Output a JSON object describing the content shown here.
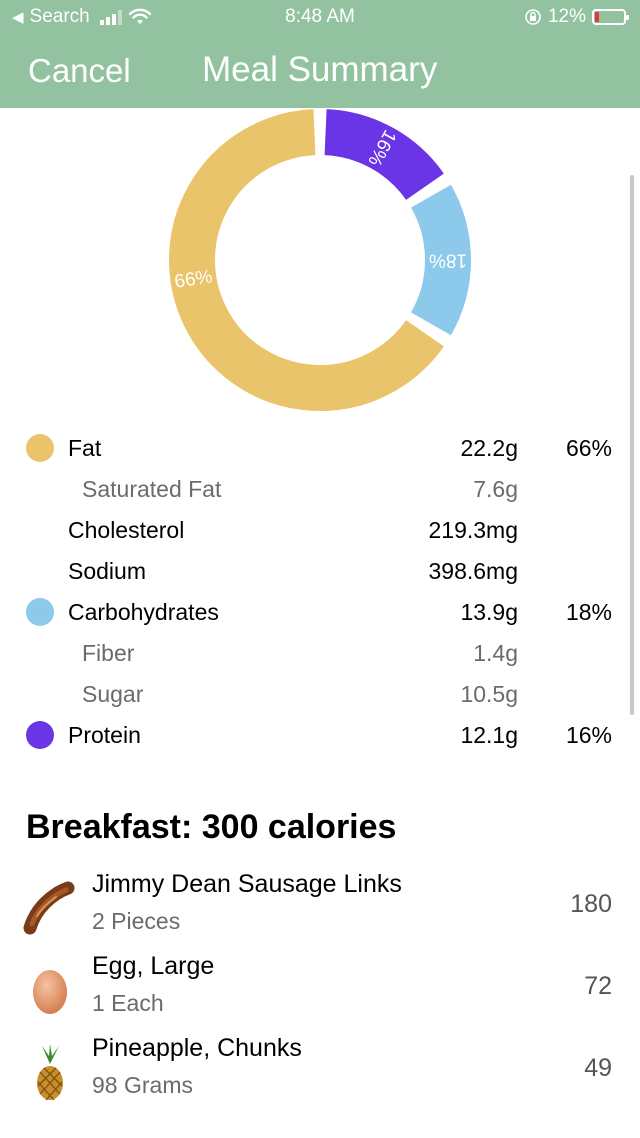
{
  "status_bar": {
    "back_app": "Search",
    "time": "8:48 AM",
    "battery": "12%"
  },
  "nav": {
    "cancel_label": "Cancel",
    "title": "Meal Summary"
  },
  "colors": {
    "header": "#92c2a0",
    "fat": "#eac46b",
    "carbs": "#8cc9ea",
    "protein": "#6a35e6"
  },
  "chart_data": {
    "type": "pie",
    "slices": [
      {
        "label": "Protein",
        "value": 16,
        "display": "16%",
        "color": "#6a35e6"
      },
      {
        "label": "Carbohydrates",
        "value": 18,
        "display": "18%",
        "color": "#8cc9ea"
      },
      {
        "label": "Fat",
        "value": 66,
        "display": "66%",
        "color": "#eac46b"
      }
    ]
  },
  "nutrition": [
    {
      "label": "Fat",
      "amount": "22.2g",
      "percent": "66%",
      "dot": "fat",
      "sub": false
    },
    {
      "label": "Saturated Fat",
      "amount": "7.6g",
      "percent": "",
      "dot": "",
      "sub": true
    },
    {
      "label": "Cholesterol",
      "amount": "219.3mg",
      "percent": "",
      "dot": "",
      "sub": false
    },
    {
      "label": "Sodium",
      "amount": "398.6mg",
      "percent": "",
      "dot": "",
      "sub": false
    },
    {
      "label": "Carbohydrates",
      "amount": "13.9g",
      "percent": "18%",
      "dot": "carbs",
      "sub": false
    },
    {
      "label": "Fiber",
      "amount": "1.4g",
      "percent": "",
      "dot": "",
      "sub": true
    },
    {
      "label": "Sugar",
      "amount": "10.5g",
      "percent": "",
      "dot": "",
      "sub": true
    },
    {
      "label": "Protein",
      "amount": "12.1g",
      "percent": "16%",
      "dot": "protein",
      "sub": false
    }
  ],
  "breakfast": {
    "title": "Breakfast: 300 calories",
    "items": [
      {
        "name": "Jimmy Dean Sausage Links",
        "quantity": "2 Pieces",
        "calories": "180",
        "icon": "sausage-icon"
      },
      {
        "name": "Egg, Large",
        "quantity": "1 Each",
        "calories": "72",
        "icon": "egg-icon"
      },
      {
        "name": "Pineapple, Chunks",
        "quantity": "98 Grams",
        "calories": "49",
        "icon": "pineapple-icon"
      }
    ]
  }
}
